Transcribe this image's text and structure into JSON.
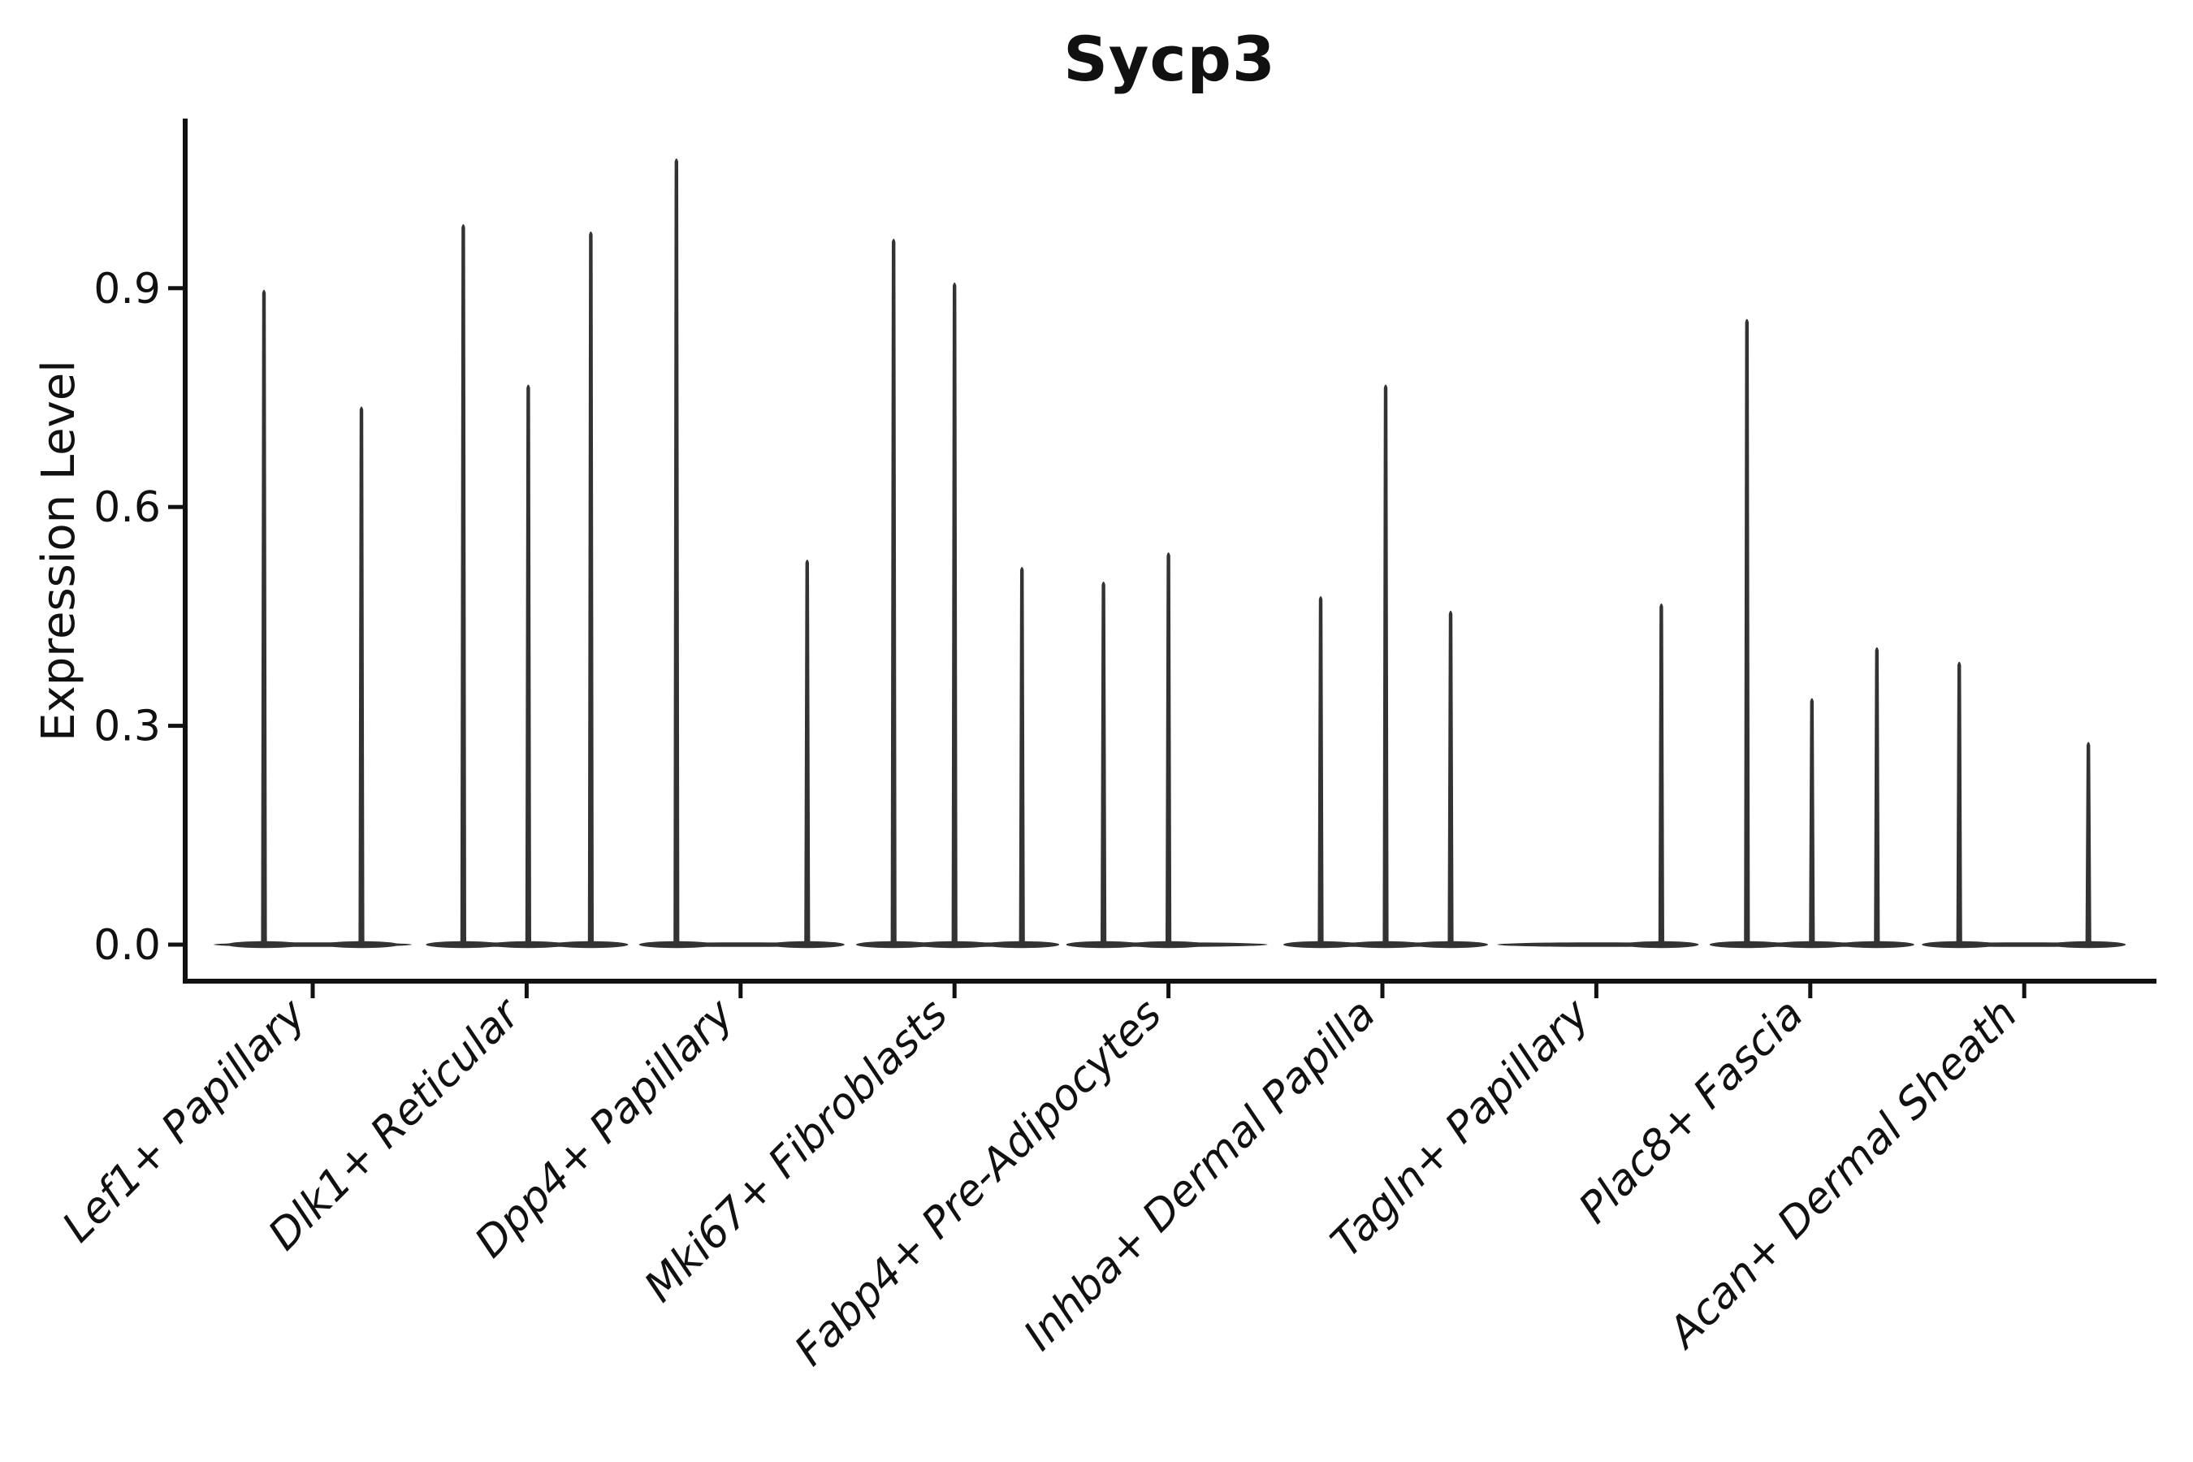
{
  "title": "Sycp3",
  "ylabel": "Expression Level",
  "chart_data": {
    "type": "violin",
    "title": "Sycp3",
    "xlabel": "",
    "ylabel": "Expression Level",
    "ylim": [
      0,
      1.13
    ],
    "grid": false,
    "legend": null,
    "ytick_labels": [
      "0.0",
      "0.3",
      "0.6",
      "0.9"
    ],
    "ytick_values": [
      0,
      0.3,
      0.6,
      0.9
    ],
    "categories": [
      "Lef1+ Papillary",
      "Dlk1+ Reticular",
      "Dpp4+ Papillary",
      "Mki67+ Fibroblasts",
      "Fabp4+ Pre-Adipocytes",
      "Inhba+ Dermal Papilla",
      "Tagln+ Papillary",
      "Plac8+ Fascia",
      "Acan+ Dermal Sheath"
    ],
    "violins": [
      {
        "category": "Lef1+ Papillary",
        "peaks": [
          {
            "slot": -60,
            "max": 0.9
          },
          {
            "slot": 60,
            "max": 0.74
          }
        ]
      },
      {
        "category": "Dlk1+ Reticular",
        "peaks": [
          {
            "slot": -78,
            "max": 0.99
          },
          {
            "slot": 2,
            "max": 0.77
          },
          {
            "slot": 79,
            "max": 0.98
          }
        ]
      },
      {
        "category": "Dpp4+ Papillary",
        "peaks": [
          {
            "slot": -79,
            "max": 1.08
          },
          {
            "slot": 82,
            "max": 0.53
          }
        ]
      },
      {
        "category": "Mki67+ Fibroblasts",
        "peaks": [
          {
            "slot": -75,
            "max": 0.97
          },
          {
            "slot": 0,
            "max": 0.91
          },
          {
            "slot": 83,
            "max": 0.52
          }
        ]
      },
      {
        "category": "Fabp4+ Pre-Adipocytes",
        "peaks": [
          {
            "slot": -80,
            "max": 0.5
          },
          {
            "slot": 0,
            "max": 0.54
          }
        ]
      },
      {
        "category": "Inhba+ Dermal Papilla",
        "peaks": [
          {
            "slot": -76,
            "max": 0.48
          },
          {
            "slot": 4,
            "max": 0.77
          },
          {
            "slot": 84,
            "max": 0.46
          }
        ]
      },
      {
        "category": "Tagln+ Papillary",
        "peaks": [
          {
            "slot": 80,
            "max": 0.47
          }
        ]
      },
      {
        "category": "Plac8+ Fascia",
        "peaks": [
          {
            "slot": -78,
            "max": 0.86
          },
          {
            "slot": 2,
            "max": 0.34
          },
          {
            "slot": 82,
            "max": 0.41
          }
        ]
      },
      {
        "category": "Acan+ Dermal Sheath",
        "peaks": [
          {
            "slot": -80,
            "max": 0.39
          },
          {
            "slot": 79,
            "max": 0.28
          }
        ]
      }
    ],
    "colors": {
      "violin": "#333333",
      "ink": "#111111"
    }
  }
}
